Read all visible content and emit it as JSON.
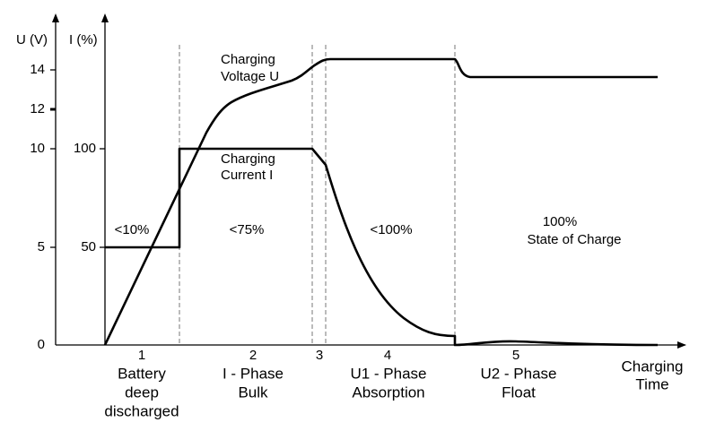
{
  "axes": {
    "u_label": "U (V)",
    "i_label": "I (%)",
    "time_label": [
      "Charging",
      "Time"
    ],
    "u_ticks": [
      "0",
      "5",
      "10",
      "12",
      "14"
    ],
    "i_ticks": [
      "50",
      "100"
    ]
  },
  "curves": {
    "voltage": [
      "Charging",
      "Voltage U"
    ],
    "current": [
      "Charging",
      "Current  I"
    ]
  },
  "phases": [
    {
      "number": "1",
      "label": [
        "Battery",
        "deep",
        "discharged"
      ],
      "charge": "<10%"
    },
    {
      "number": "2",
      "label": [
        "I - Phase",
        "Bulk"
      ],
      "charge": "<75%"
    },
    {
      "number": "3"
    },
    {
      "number": "4",
      "label": [
        "U1 - Phase",
        "Absorption"
      ],
      "charge": "<100%"
    },
    {
      "number": "5",
      "label": [
        "U2 - Phase",
        "Float"
      ],
      "charge": [
        "100%",
        "State of Charge"
      ]
    }
  ]
}
